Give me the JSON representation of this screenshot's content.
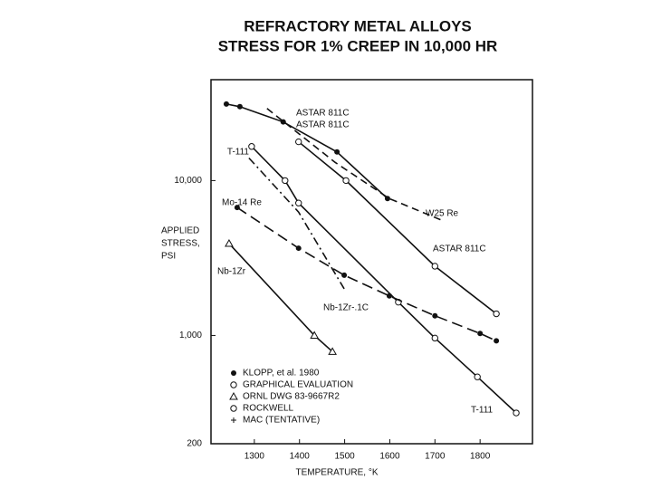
{
  "chart_data": {
    "type": "line",
    "title": [
      "REFRACTORY METAL ALLOYS",
      "STRESS FOR 1% CREEP IN 10,000 HR"
    ],
    "xlabel": "TEMPERATURE, °K",
    "ylabel": [
      "APPLIED",
      "STRESS,",
      "PSI"
    ],
    "xlim": [
      1204,
      1916
    ],
    "ylim": [
      200,
      44800
    ],
    "ylog": true,
    "xticks": [
      1300,
      1400,
      1500,
      1600,
      1700,
      1800
    ],
    "yticks": [
      200,
      {
        "value": 1000,
        "label": "1,000"
      },
      {
        "value": 10000,
        "label": "10,000"
      }
    ],
    "color": "#111111",
    "series": [
      {
        "name": "ASTAR 811C",
        "style": "solid",
        "marker": "filled-circle",
        "x": [
          1238,
          1268,
          1364,
          1483,
          1595
        ],
        "values": [
          31200,
          30000,
          23900,
          15300,
          7650
        ]
      },
      {
        "name": "W25 Re",
        "style": "dashed",
        "marker": "none",
        "x": [
          1328,
          1479,
          1599,
          1720
        ],
        "values": [
          29200,
          13100,
          7650,
          5470
        ]
      },
      {
        "name": "ASTAR 811C",
        "style": "solid",
        "marker": "open-circle",
        "x": [
          1398,
          1503,
          1700,
          1836
        ],
        "values": [
          17800,
          10000,
          2800,
          1380
        ]
      },
      {
        "name": "T-111",
        "style": "solid",
        "marker": "open-circle",
        "x": [
          1294,
          1368,
          1398,
          1619,
          1700,
          1794,
          1880
        ],
        "values": [
          16600,
          10000,
          7160,
          1640,
          962,
          540,
          316
        ]
      },
      {
        "name": "Mo-14 Re",
        "style": "long-dash",
        "marker": "filled-circle",
        "x": [
          1262,
          1398,
          1499,
          1599,
          1700,
          1800,
          1836
        ],
        "values": [
          6700,
          3660,
          2450,
          1800,
          1340,
          1030,
          923
        ]
      },
      {
        "name": "Nb-1Zr",
        "style": "solid",
        "marker": "triangle",
        "x": [
          1244,
          1433,
          1473
        ],
        "values": [
          3920,
          1000,
          786
        ]
      },
      {
        "name": "Nb-1Zr-.1C",
        "style": "dash-dot",
        "marker": "none",
        "x": [
          1288,
          1398,
          1499
        ],
        "values": [
          13980,
          6260,
          2000
        ]
      }
    ],
    "annotations": [
      "ASTAR 811C",
      "T-111"
    ],
    "legend": [
      {
        "marker": "filled-circle",
        "label": "KLOPP, et al. 1980"
      },
      {
        "marker": "open-circle",
        "label": "GRAPHICAL EVALUATION"
      },
      {
        "marker": "triangle",
        "label": "ORNL DWG 83-9667R2"
      },
      {
        "marker": "open-circle",
        "label": "ROCKWELL"
      },
      {
        "marker": "plus",
        "label": "MAC (TENTATIVE)"
      }
    ]
  }
}
